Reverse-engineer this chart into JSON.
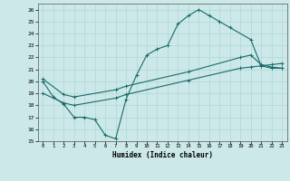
{
  "xlabel": "Humidex (Indice chaleur)",
  "ylabel": "",
  "bg_color": "#cce8e8",
  "grid_color": "#b0d8d8",
  "line_color": "#1a6b6b",
  "xlim": [
    -0.5,
    23.5
  ],
  "ylim": [
    15,
    26.5
  ],
  "yticks": [
    15,
    16,
    17,
    18,
    19,
    20,
    21,
    22,
    23,
    24,
    25,
    26
  ],
  "xticks": [
    0,
    1,
    2,
    3,
    4,
    5,
    6,
    7,
    8,
    9,
    10,
    11,
    12,
    13,
    14,
    15,
    16,
    17,
    18,
    19,
    20,
    21,
    22,
    23
  ],
  "line1_x": [
    0,
    1,
    2,
    3,
    4,
    5,
    6,
    7,
    8,
    9,
    10,
    11,
    12,
    13,
    14,
    15,
    16,
    17,
    18,
    20,
    21,
    22,
    23
  ],
  "line1_y": [
    20.0,
    18.7,
    18.1,
    17.0,
    17.0,
    16.8,
    15.5,
    15.2,
    18.5,
    20.5,
    22.2,
    22.7,
    23.0,
    24.8,
    25.5,
    26.0,
    25.5,
    25.0,
    24.5,
    23.5,
    21.3,
    21.1,
    21.1
  ],
  "line2_x": [
    0,
    2,
    3,
    7,
    8,
    14,
    19,
    20,
    21,
    22,
    23
  ],
  "line2_y": [
    19.0,
    18.2,
    18.0,
    18.6,
    18.9,
    20.1,
    21.1,
    21.2,
    21.3,
    21.4,
    21.5
  ],
  "line3_x": [
    0,
    2,
    3,
    7,
    8,
    14,
    19,
    20,
    21,
    22,
    23
  ],
  "line3_y": [
    20.2,
    18.9,
    18.7,
    19.3,
    19.6,
    20.8,
    22.0,
    22.2,
    21.4,
    21.2,
    21.1
  ]
}
